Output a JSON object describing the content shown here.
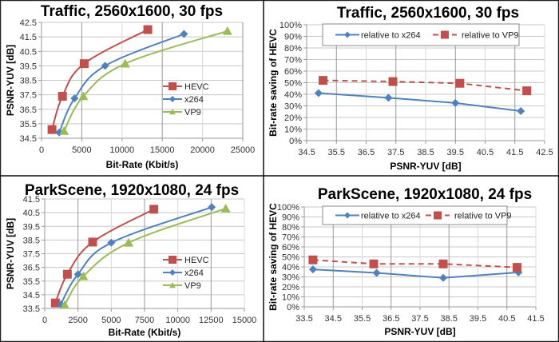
{
  "chart_data": [
    {
      "id": "traffic-rd",
      "type": "line",
      "title": "Traffic,  2560x1600, 30 fps",
      "xlabel": "Bit-Rate (Kbit/s)",
      "ylabel": "PSNR-YUV [dB]",
      "xlim": [
        0,
        25000
      ],
      "ylim": [
        34.5,
        42.5
      ],
      "xticks": [
        0,
        5000,
        10000,
        15000,
        20000,
        25000
      ],
      "xtick_labels": [
        "0",
        "5000",
        "10000",
        "15000",
        "20000",
        "25000"
      ],
      "yticks": [
        34.5,
        35.5,
        36.5,
        37.5,
        38.5,
        39.5,
        40.5,
        41.5,
        42.5
      ],
      "ytick_labels": [
        "34.5",
        "35.5",
        "36.5",
        "37.5",
        "38.5",
        "39.5",
        "40.5",
        "41.5",
        "42.5"
      ],
      "grid": true,
      "legend": "center-right",
      "series": [
        {
          "name": "HEVC",
          "color": "#c0504d",
          "marker": "square",
          "dash": false,
          "x": [
            1300,
            2600,
            5300,
            13200
          ],
          "y": [
            35.1,
            37.4,
            39.65,
            42.0
          ]
        },
        {
          "name": "x264",
          "color": "#4f81bd",
          "marker": "diamond",
          "dash": false,
          "x": [
            2200,
            4100,
            7900,
            17700
          ],
          "y": [
            34.9,
            37.25,
            39.5,
            41.7
          ]
        },
        {
          "name": "VP9",
          "color": "#9bbb59",
          "marker": "triangle",
          "dash": false,
          "x": [
            2800,
            5200,
            10400,
            23100
          ],
          "y": [
            35.0,
            37.4,
            39.65,
            41.9
          ]
        }
      ]
    },
    {
      "id": "traffic-saving",
      "type": "line",
      "title": "Traffic, 2560x1600, 30 fps",
      "xlabel": "PSNR-YUV [dB]",
      "ylabel": "Bit-rate saving of HEVC",
      "xlim": [
        34.5,
        42.5
      ],
      "ylim": [
        0,
        100
      ],
      "xticks": [
        34.5,
        35.5,
        36.5,
        37.5,
        38.5,
        39.5,
        40.5,
        41.5,
        42.5
      ],
      "xtick_labels": [
        "34.5",
        "35.5",
        "36.5",
        "37.5",
        "38.5",
        "39.5",
        "40.5",
        "41.5",
        "42.5"
      ],
      "yticks": [
        0,
        10,
        20,
        30,
        40,
        50,
        60,
        70,
        80,
        90,
        100
      ],
      "ytick_labels": [
        "0%",
        "10%",
        "20%",
        "30%",
        "40%",
        "50%",
        "60%",
        "70%",
        "80%",
        "90%",
        "100%"
      ],
      "grid": true,
      "legend": "top",
      "series": [
        {
          "name": "relative to x264",
          "color": "#4f81bd",
          "marker": "diamond",
          "dash": false,
          "x": [
            34.9,
            37.25,
            39.5,
            41.7
          ],
          "y": [
            41,
            37,
            32.5,
            25.5
          ]
        },
        {
          "name": "relative to VP9",
          "color": "#c0504d",
          "marker": "square",
          "dash": true,
          "x": [
            35.05,
            37.4,
            39.65,
            41.9
          ],
          "y": [
            52,
            51,
            49.5,
            43
          ]
        }
      ]
    },
    {
      "id": "parkscene-rd",
      "type": "line",
      "title": "ParkScene, 1920x1080, 24 fps",
      "xlabel": "Bit-Rate (Kbit/s)",
      "ylabel": "PSNR-YUV [dB]",
      "xlim": [
        0,
        15000
      ],
      "ylim": [
        33.5,
        41.5
      ],
      "xticks": [
        0,
        2500,
        5000,
        7500,
        10000,
        12500,
        15000
      ],
      "xtick_labels": [
        "0",
        "2500",
        "5000",
        "7500",
        "10000",
        "12500",
        "15000"
      ],
      "yticks": [
        33.5,
        34.5,
        35.5,
        36.5,
        37.5,
        38.5,
        39.5,
        40.5,
        41.5
      ],
      "ytick_labels": [
        "33.5",
        "34.5",
        "35.5",
        "36.5",
        "37.5",
        "38.5",
        "39.5",
        "40.5",
        "41.5"
      ],
      "grid": true,
      "legend": "center-right",
      "series": [
        {
          "name": "HEVC",
          "color": "#c0504d",
          "marker": "square",
          "dash": false,
          "x": [
            800,
            1700,
            3600,
            8200
          ],
          "y": [
            33.9,
            36.0,
            38.35,
            40.75
          ]
        },
        {
          "name": "x264",
          "color": "#4f81bd",
          "marker": "diamond",
          "dash": false,
          "x": [
            1200,
            2500,
            5000,
            12550
          ],
          "y": [
            33.8,
            36.0,
            38.3,
            40.9
          ]
        },
        {
          "name": "VP9",
          "color": "#9bbb59",
          "marker": "triangle",
          "dash": false,
          "x": [
            1500,
            2900,
            6300,
            13600
          ],
          "y": [
            33.75,
            35.85,
            38.3,
            40.8
          ]
        }
      ]
    },
    {
      "id": "parkscene-saving",
      "type": "line",
      "title": "ParkScene, 1920x1080, 24 fps",
      "xlabel": "PSNR-YUV [dB]",
      "ylabel": "Bit-rate saving of HEVC",
      "xlim": [
        33.5,
        41.5
      ],
      "ylim": [
        0,
        100
      ],
      "xticks": [
        33.5,
        34.5,
        35.5,
        36.5,
        37.5,
        38.5,
        39.5,
        40.5,
        41.5
      ],
      "xtick_labels": [
        "33.5",
        "34.5",
        "35.5",
        "36.5",
        "37.5",
        "38.5",
        "39.5",
        "40.5",
        "41.5"
      ],
      "yticks": [
        0,
        10,
        20,
        30,
        40,
        50,
        60,
        70,
        80,
        90,
        100
      ],
      "ytick_labels": [
        "0%",
        "10%",
        "20%",
        "30%",
        "40%",
        "50%",
        "60%",
        "70%",
        "80%",
        "90%",
        "100%"
      ],
      "grid": true,
      "legend": "top",
      "series": [
        {
          "name": "relative to x264",
          "color": "#4f81bd",
          "marker": "diamond",
          "dash": false,
          "x": [
            33.8,
            36.0,
            38.3,
            40.9
          ],
          "y": [
            37.5,
            34,
            29,
            34.5
          ]
        },
        {
          "name": "relative to VP9",
          "color": "#c0504d",
          "marker": "square",
          "dash": true,
          "x": [
            33.8,
            35.9,
            38.3,
            40.85
          ],
          "y": [
            47,
            43,
            43,
            39.5
          ]
        }
      ]
    }
  ]
}
